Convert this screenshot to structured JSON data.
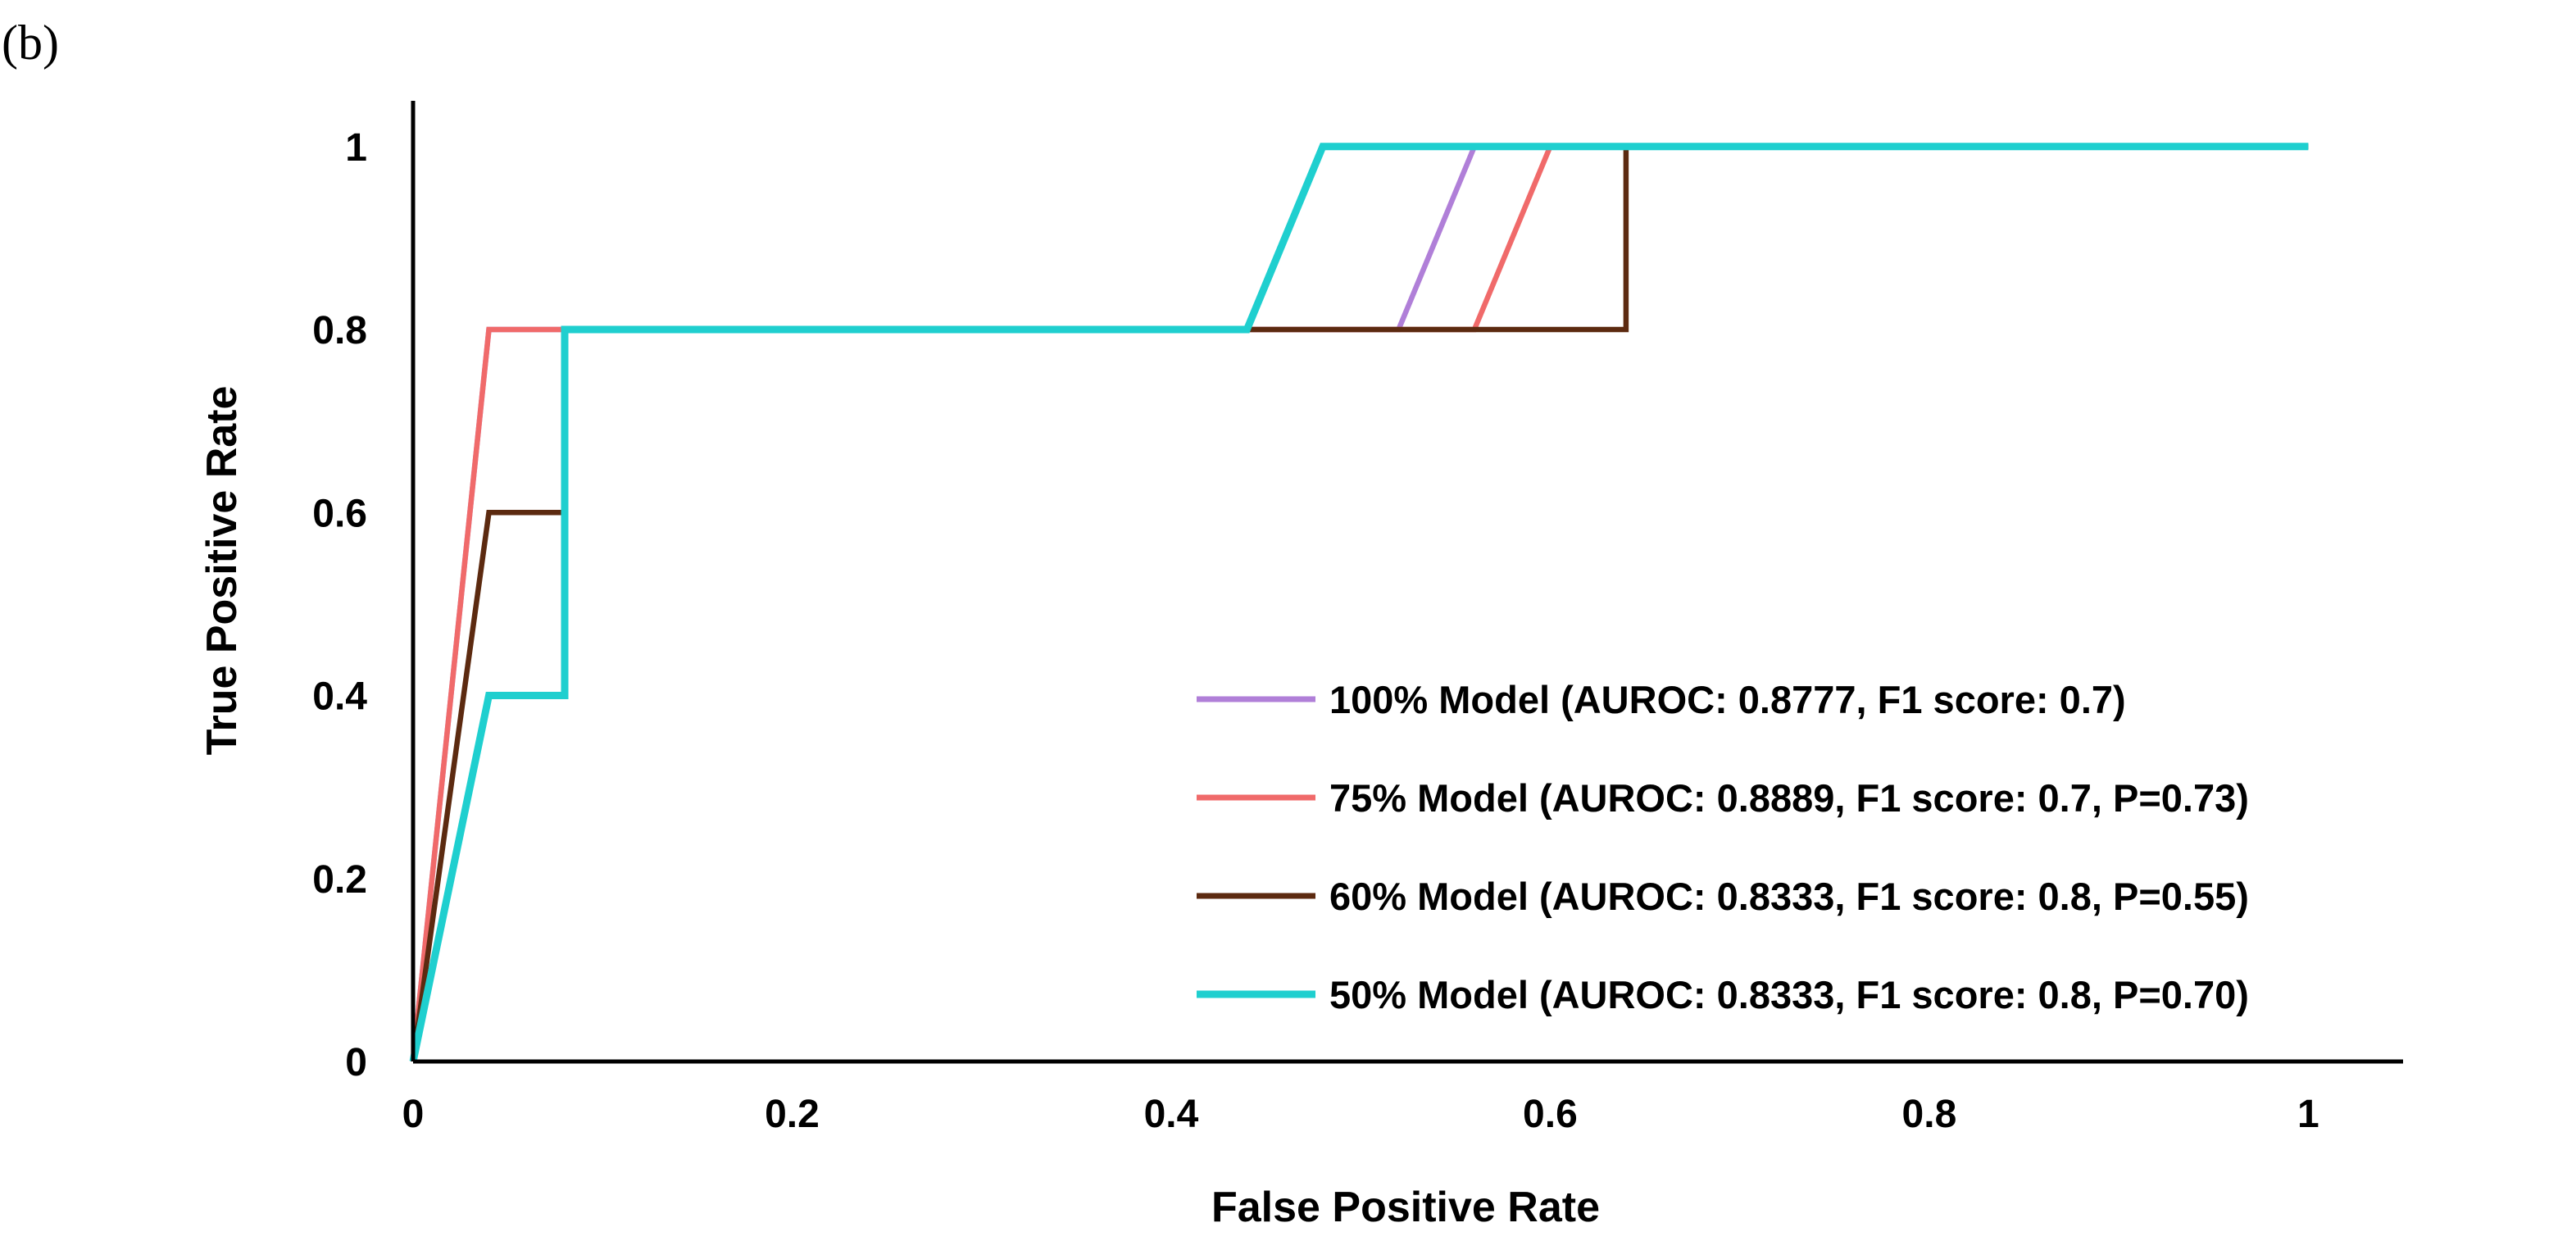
{
  "panel_label": "(b)",
  "chart_data": {
    "type": "line",
    "title": "",
    "xlabel": "False Positive Rate",
    "ylabel": "True Positive Rate",
    "xlim": [
      0,
      1.05
    ],
    "ylim": [
      0,
      1.05
    ],
    "x_ticks": [
      0,
      0.2,
      0.4,
      0.6,
      0.8,
      1
    ],
    "x_tick_labels": [
      "0",
      "0.2",
      "0.4",
      "0.6",
      "0.8",
      "1"
    ],
    "y_ticks": [
      0,
      0.2,
      0.4,
      0.6,
      0.8,
      1
    ],
    "y_tick_labels": [
      "0",
      "0.2",
      "0.4",
      "0.6",
      "0.8",
      "1"
    ],
    "grid": false,
    "legend_position": "lower-right",
    "series": [
      {
        "name": "100% Model (AUROC: 0.8777, F1 score: 0.7)",
        "color": "#b07fd8",
        "points": [
          [
            0,
            0
          ],
          [
            0.04,
            0.8
          ],
          [
            0.08,
            0.8
          ],
          [
            0.52,
            0.8
          ],
          [
            0.56,
            1
          ],
          [
            1,
            1
          ]
        ]
      },
      {
        "name": "75% Model (AUROC: 0.8889, F1 score: 0.7, P=0.73)",
        "color": "#f06a6a",
        "points": [
          [
            0,
            0
          ],
          [
            0.04,
            0.8
          ],
          [
            0.08,
            0.8
          ],
          [
            0.56,
            0.8
          ],
          [
            0.6,
            1
          ],
          [
            1,
            1
          ]
        ]
      },
      {
        "name": "60% Model (AUROC: 0.8333, F1 score: 0.8, P=0.55)",
        "color": "#5c2a10",
        "points": [
          [
            0,
            0
          ],
          [
            0.04,
            0.6
          ],
          [
            0.08,
            0.6
          ],
          [
            0.08,
            0.8
          ],
          [
            0.64,
            0.8
          ],
          [
            0.64,
            1
          ],
          [
            1,
            1
          ]
        ]
      },
      {
        "name": "50% Model (AUROC: 0.8333, F1 score: 0.8, P=0.70)",
        "color": "#1fcfcf",
        "points": [
          [
            0,
            0
          ],
          [
            0.04,
            0.4
          ],
          [
            0.08,
            0.4
          ],
          [
            0.08,
            0.8
          ],
          [
            0.44,
            0.8
          ],
          [
            0.48,
            1
          ],
          [
            1,
            1
          ]
        ]
      }
    ]
  }
}
